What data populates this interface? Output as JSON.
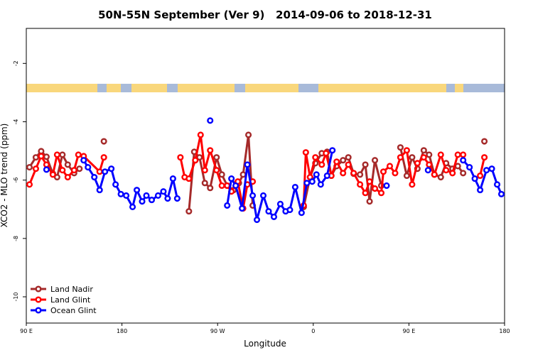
{
  "chart_data": {
    "type": "line",
    "title": "50N-55N September (Ver 9)   2014-09-06 to 2018-12-31",
    "xlabel": "Longitude",
    "ylabel": "XCO2 - MLO trend (ppm)",
    "xlim": [
      90,
      540
    ],
    "xticks": [
      {
        "value": 90,
        "label": "90 E"
      },
      {
        "value": 180,
        "label": "180"
      },
      {
        "value": 270,
        "label": "90 W"
      },
      {
        "value": 360,
        "label": "0"
      },
      {
        "value": 450,
        "label": "90 E"
      },
      {
        "value": 540,
        "label": "180"
      }
    ],
    "ylim": [
      -10.9,
      -0.8
    ],
    "yticks": [
      -10,
      -8,
      -6,
      -4,
      -2
    ],
    "legend": "lower left",
    "series": [
      {
        "name": "Land Nadir",
        "color": "#a52a2a",
        "x": [
          93,
          99,
          104,
          109,
          115,
          119,
          124,
          129,
          135,
          140,
          null,
          163,
          null,
          243,
          248,
          253,
          258,
          263,
          269,
          274,
          279,
          285,
          290,
          294,
          299,
          303,
          null,
          351,
          357,
          362,
          368,
          373,
          377,
          382,
          388,
          393,
          398,
          404,
          409,
          413,
          418,
          424,
          null,
          442,
          448,
          453,
          458,
          464,
          469,
          474,
          480,
          485,
          491,
          496,
          501,
          null,
          521
        ],
        "values": [
          -5.56,
          -5.22,
          -5.01,
          -5.2,
          -5.78,
          -5.9,
          -5.13,
          -5.47,
          -5.76,
          -5.61,
          null,
          -4.67,
          null,
          -7.07,
          -5.03,
          -5.22,
          -6.1,
          -6.27,
          -5.22,
          -5.81,
          -6.19,
          -6.34,
          -6.1,
          -5.81,
          -4.45,
          -6.87,
          null,
          -6.92,
          -5.9,
          -5.42,
          -5.08,
          -5.03,
          -5.85,
          -5.52,
          -5.32,
          -5.22,
          -5.78,
          -5.81,
          -5.47,
          -6.73,
          -5.32,
          -6.19,
          null,
          -4.88,
          -5.85,
          -5.22,
          -5.61,
          -4.98,
          -5.13,
          -5.81,
          -5.9,
          -5.42,
          -5.61,
          -5.52,
          -5.76,
          null,
          -4.67
        ]
      },
      {
        "name": "Land Glint",
        "color": "#ff0000",
        "x": [
          93,
          99,
          104,
          109,
          115,
          119,
          124,
          129,
          135,
          139,
          144,
          159,
          163,
          null,
          235,
          239,
          243,
          249,
          254,
          258,
          263,
          269,
          274,
          279,
          283,
          289,
          294,
          298,
          303,
          null,
          351,
          353,
          357,
          362,
          368,
          372,
          377,
          382,
          388,
          393,
          398,
          404,
          409,
          413,
          418,
          424,
          426,
          432,
          437,
          442,
          448,
          453,
          458,
          464,
          469,
          474,
          480,
          485,
          491,
          496,
          501,
          null,
          517,
          521
        ],
        "values": [
          -6.15,
          -5.61,
          -5.18,
          -5.47,
          -5.81,
          -5.13,
          -5.66,
          -5.9,
          -5.66,
          -5.13,
          -5.18,
          -5.71,
          -5.22,
          null,
          -5.22,
          -5.9,
          -5.95,
          -5.32,
          -4.45,
          -5.66,
          -4.98,
          -5.66,
          -6.19,
          -6.19,
          -6.39,
          -6.05,
          -6.97,
          -6.15,
          -6.05,
          null,
          -6.87,
          -5.05,
          -5.9,
          -5.22,
          -5.47,
          -5.08,
          -5.85,
          -5.37,
          -5.76,
          -5.47,
          -5.76,
          -6.15,
          -6.44,
          -6.05,
          -6.29,
          -6.44,
          -5.71,
          -5.52,
          -5.76,
          -5.22,
          -4.98,
          -6.15,
          -5.42,
          -5.22,
          -5.47,
          -5.81,
          -5.13,
          -5.66,
          -5.76,
          -5.13,
          -5.13,
          null,
          -5.85,
          -5.22
        ]
      },
      {
        "name": "Ocean Glint",
        "color": "#0000ff",
        "x": [
          109,
          null,
          144,
          148,
          154,
          159,
          164,
          170,
          174,
          179,
          184,
          190,
          194,
          199,
          203,
          208,
          214,
          219,
          223,
          228,
          232,
          null,
          263,
          null,
          279,
          283,
          287,
          293,
          298,
          303,
          307,
          313,
          318,
          323,
          329,
          334,
          338,
          343,
          349,
          354,
          359,
          363,
          367,
          373,
          378,
          null,
          429,
          null,
          468,
          null,
          501,
          507,
          512,
          517,
          523,
          528,
          533,
          537
        ],
        "values": [
          -5.64,
          null,
          -5.32,
          -5.56,
          -5.9,
          -6.34,
          -5.71,
          -5.61,
          -6.15,
          -6.48,
          -6.53,
          -6.92,
          -6.34,
          -6.73,
          -6.53,
          -6.68,
          -6.53,
          -6.39,
          -6.63,
          -5.95,
          -6.63,
          null,
          -3.96,
          null,
          -6.87,
          -5.95,
          -6.19,
          -6.97,
          -5.47,
          -6.53,
          -7.36,
          -6.53,
          -7.07,
          -7.26,
          -6.82,
          -7.07,
          -7.02,
          -6.24,
          -7.12,
          -6.1,
          -6.05,
          -5.81,
          -6.15,
          -5.85,
          -4.98,
          null,
          -6.19,
          null,
          -5.66,
          null,
          -5.32,
          -5.56,
          -5.95,
          -6.34,
          -5.66,
          -5.61,
          -6.15,
          -6.48
        ]
      }
    ]
  }
}
